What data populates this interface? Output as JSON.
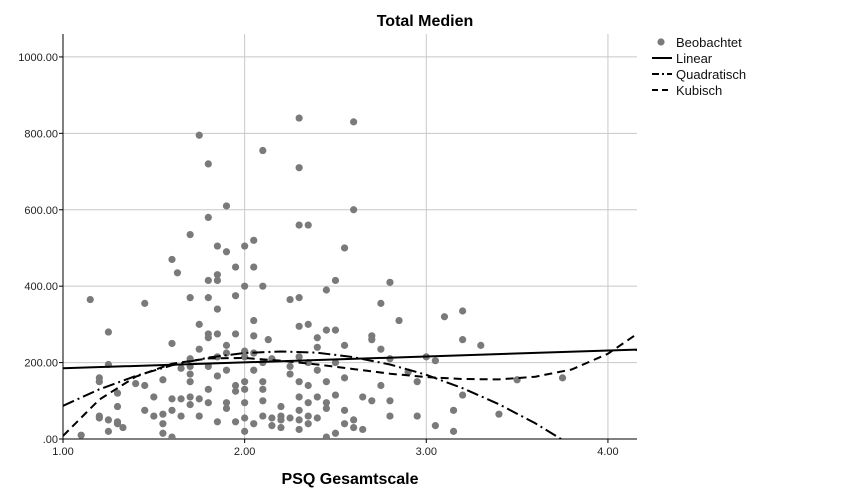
{
  "chart_data": {
    "type": "scatter",
    "title": "Total Medien",
    "xlabel": "PSQ Gesamtscale",
    "ylabel": "",
    "xlim": [
      1.0,
      4.16
    ],
    "ylim": [
      0,
      1060
    ],
    "x_ticks": [
      1.0,
      2.0,
      3.0,
      4.0
    ],
    "x_tick_labels": [
      "1.00",
      "2.00",
      "3.00",
      "4.00"
    ],
    "y_ticks": [
      0,
      200,
      400,
      600,
      800,
      1000
    ],
    "y_tick_labels": [
      ".00",
      "200.00",
      "400.00",
      "600.00",
      "800.00",
      "1000.00"
    ],
    "grid": "vertical and horizontal at major ticks",
    "legend_position": "top-right (outside plot)",
    "colors": {
      "points": "#7a7a7a",
      "lines": "#000000",
      "grid": "#c8c8c8"
    },
    "legend": [
      {
        "label": "Beobachtet",
        "kind": "marker"
      },
      {
        "label": "Linear",
        "kind": "solid"
      },
      {
        "label": "Quadratisch",
        "kind": "dashdot"
      },
      {
        "label": "Kubisch",
        "kind": "dashed"
      }
    ],
    "series": [
      {
        "name": "Beobachtet",
        "points": [
          [
            1.1,
            10
          ],
          [
            1.15,
            365
          ],
          [
            1.2,
            160
          ],
          [
            1.2,
            150
          ],
          [
            1.2,
            60
          ],
          [
            1.2,
            55
          ],
          [
            1.25,
            280
          ],
          [
            1.25,
            195
          ],
          [
            1.25,
            20
          ],
          [
            1.25,
            50
          ],
          [
            1.3,
            120
          ],
          [
            1.3,
            85
          ],
          [
            1.3,
            45
          ],
          [
            1.3,
            40
          ],
          [
            1.33,
            30
          ],
          [
            1.4,
            145
          ],
          [
            1.45,
            355
          ],
          [
            1.45,
            140
          ],
          [
            1.45,
            75
          ],
          [
            1.5,
            110
          ],
          [
            1.5,
            60
          ],
          [
            1.55,
            155
          ],
          [
            1.55,
            65
          ],
          [
            1.55,
            40
          ],
          [
            1.55,
            15
          ],
          [
            1.6,
            470
          ],
          [
            1.6,
            250
          ],
          [
            1.6,
            105
          ],
          [
            1.6,
            75
          ],
          [
            1.6,
            5
          ],
          [
            1.63,
            435
          ],
          [
            1.65,
            185
          ],
          [
            1.65,
            105
          ],
          [
            1.65,
            60
          ],
          [
            1.7,
            535
          ],
          [
            1.7,
            370
          ],
          [
            1.7,
            210
          ],
          [
            1.7,
            190
          ],
          [
            1.7,
            170
          ],
          [
            1.7,
            150
          ],
          [
            1.7,
            110
          ],
          [
            1.7,
            90
          ],
          [
            1.75,
            795
          ],
          [
            1.75,
            300
          ],
          [
            1.75,
            235
          ],
          [
            1.75,
            105
          ],
          [
            1.75,
            60
          ],
          [
            1.8,
            720
          ],
          [
            1.8,
            580
          ],
          [
            1.8,
            415
          ],
          [
            1.8,
            370
          ],
          [
            1.8,
            275
          ],
          [
            1.8,
            265
          ],
          [
            1.8,
            190
          ],
          [
            1.8,
            130
          ],
          [
            1.8,
            95
          ],
          [
            1.85,
            505
          ],
          [
            1.85,
            430
          ],
          [
            1.85,
            415
          ],
          [
            1.85,
            340
          ],
          [
            1.85,
            275
          ],
          [
            1.85,
            215
          ],
          [
            1.85,
            165
          ],
          [
            1.85,
            45
          ],
          [
            1.9,
            610
          ],
          [
            1.9,
            490
          ],
          [
            1.9,
            245
          ],
          [
            1.9,
            225
          ],
          [
            1.9,
            180
          ],
          [
            1.9,
            95
          ],
          [
            1.9,
            80
          ],
          [
            1.95,
            450
          ],
          [
            1.95,
            375
          ],
          [
            1.95,
            275
          ],
          [
            1.95,
            140
          ],
          [
            1.95,
            125
          ],
          [
            1.95,
            45
          ],
          [
            2.0,
            505
          ],
          [
            2.0,
            400
          ],
          [
            2.0,
            230
          ],
          [
            2.0,
            215
          ],
          [
            2.0,
            150
          ],
          [
            2.0,
            130
          ],
          [
            2.0,
            95
          ],
          [
            2.0,
            55
          ],
          [
            2.0,
            20
          ],
          [
            2.05,
            520
          ],
          [
            2.05,
            450
          ],
          [
            2.05,
            310
          ],
          [
            2.05,
            270
          ],
          [
            2.05,
            225
          ],
          [
            2.05,
            180
          ],
          [
            2.05,
            40
          ],
          [
            2.1,
            755
          ],
          [
            2.1,
            400
          ],
          [
            2.1,
            200
          ],
          [
            2.1,
            150
          ],
          [
            2.1,
            130
          ],
          [
            2.1,
            100
          ],
          [
            2.1,
            60
          ],
          [
            2.13,
            260
          ],
          [
            2.15,
            210
          ],
          [
            2.15,
            55
          ],
          [
            2.15,
            35
          ],
          [
            2.2,
            85
          ],
          [
            2.2,
            60
          ],
          [
            2.2,
            50
          ],
          [
            2.2,
            30
          ],
          [
            2.25,
            365
          ],
          [
            2.25,
            190
          ],
          [
            2.25,
            170
          ],
          [
            2.25,
            55
          ],
          [
            2.3,
            840
          ],
          [
            2.3,
            710
          ],
          [
            2.3,
            560
          ],
          [
            2.3,
            370
          ],
          [
            2.3,
            295
          ],
          [
            2.3,
            215
          ],
          [
            2.3,
            150
          ],
          [
            2.3,
            110
          ],
          [
            2.3,
            75
          ],
          [
            2.3,
            50
          ],
          [
            2.3,
            25
          ],
          [
            2.35,
            560
          ],
          [
            2.35,
            300
          ],
          [
            2.35,
            200
          ],
          [
            2.35,
            140
          ],
          [
            2.35,
            95
          ],
          [
            2.35,
            60
          ],
          [
            2.35,
            40
          ],
          [
            2.4,
            265
          ],
          [
            2.4,
            240
          ],
          [
            2.4,
            180
          ],
          [
            2.4,
            110
          ],
          [
            2.4,
            55
          ],
          [
            2.45,
            390
          ],
          [
            2.45,
            285
          ],
          [
            2.45,
            150
          ],
          [
            2.45,
            95
          ],
          [
            2.45,
            80
          ],
          [
            2.45,
            5
          ],
          [
            2.5,
            415
          ],
          [
            2.5,
            285
          ],
          [
            2.5,
            200
          ],
          [
            2.5,
            115
          ],
          [
            2.5,
            15
          ],
          [
            2.55,
            500
          ],
          [
            2.55,
            245
          ],
          [
            2.55,
            160
          ],
          [
            2.55,
            75
          ],
          [
            2.55,
            40
          ],
          [
            2.6,
            830
          ],
          [
            2.6,
            600
          ],
          [
            2.6,
            50
          ],
          [
            2.6,
            30
          ],
          [
            2.65,
            110
          ],
          [
            2.65,
            25
          ],
          [
            2.7,
            270
          ],
          [
            2.7,
            260
          ],
          [
            2.7,
            100
          ],
          [
            2.75,
            355
          ],
          [
            2.75,
            235
          ],
          [
            2.75,
            140
          ],
          [
            2.8,
            410
          ],
          [
            2.8,
            210
          ],
          [
            2.8,
            100
          ],
          [
            2.8,
            60
          ],
          [
            2.85,
            310
          ],
          [
            2.9,
            175
          ],
          [
            2.95,
            150
          ],
          [
            2.95,
            60
          ],
          [
            3.0,
            215
          ],
          [
            3.05,
            205
          ],
          [
            3.05,
            35
          ],
          [
            3.1,
            320
          ],
          [
            3.15,
            75
          ],
          [
            3.15,
            20
          ],
          [
            3.2,
            335
          ],
          [
            3.2,
            260
          ],
          [
            3.2,
            115
          ],
          [
            3.3,
            245
          ],
          [
            3.4,
            65
          ],
          [
            3.5,
            155
          ],
          [
            3.75,
            160
          ]
        ]
      },
      {
        "name": "Linear",
        "x": [
          1.0,
          4.16
        ],
        "y": [
          185,
          234
        ]
      },
      {
        "name": "Quadratisch",
        "x": [
          1.0,
          1.2,
          1.4,
          1.6,
          1.8,
          2.0,
          2.2,
          2.4,
          2.6,
          2.8,
          3.0,
          3.2,
          3.4,
          3.6,
          3.8,
          4.0
        ],
        "y": [
          87,
          130,
          165,
          193,
          213,
          225,
          229,
          226,
          214,
          195,
          168,
          133,
          91,
          41,
          -17,
          -83
        ]
      },
      {
        "name": "Kubisch",
        "x": [
          1.0,
          1.2,
          1.4,
          1.6,
          1.8,
          2.0,
          2.2,
          2.4,
          2.6,
          2.8,
          3.0,
          3.2,
          3.4,
          3.6,
          3.8,
          4.0,
          4.16
        ],
        "y": [
          8,
          103,
          163,
          197,
          211,
          212,
          205,
          195,
          183,
          171,
          162,
          157,
          156,
          163,
          182,
          223,
          275
        ]
      }
    ]
  }
}
